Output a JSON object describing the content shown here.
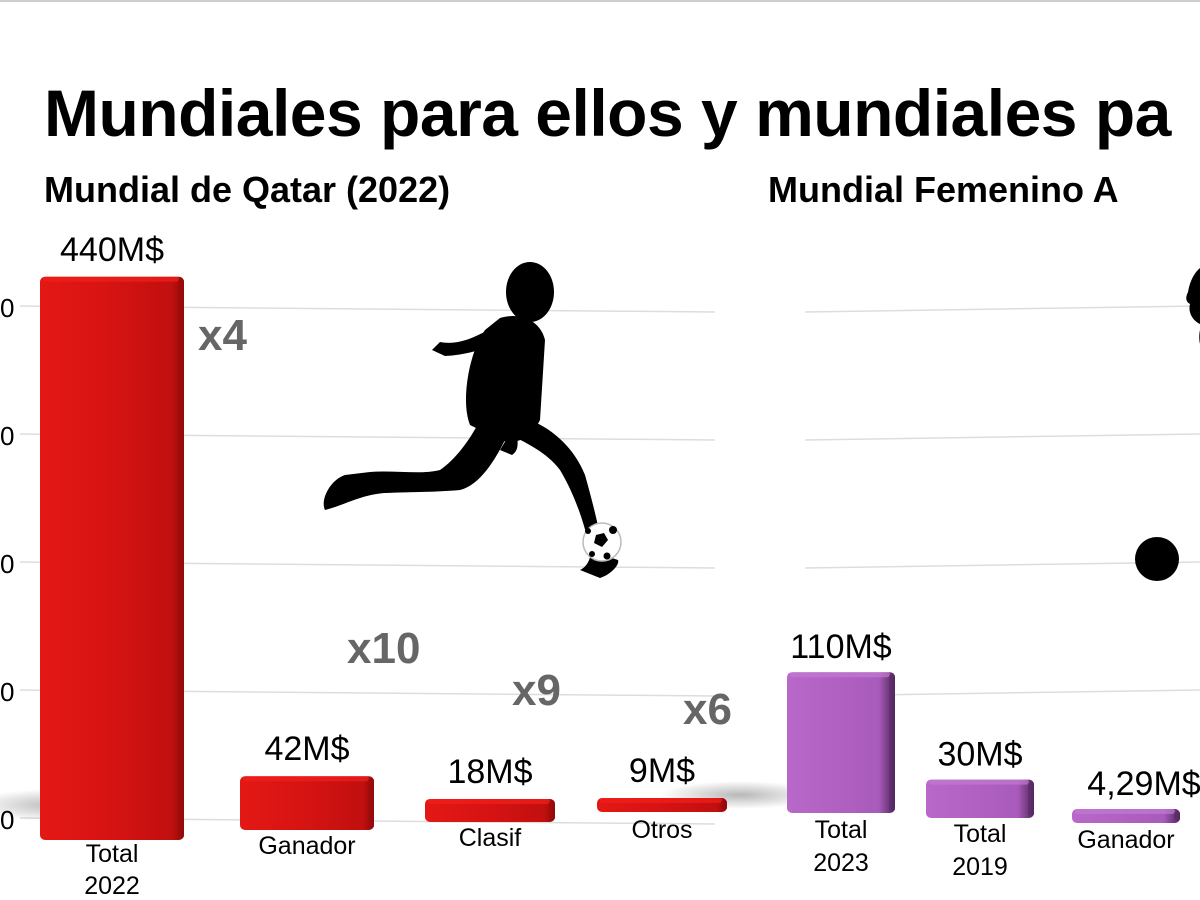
{
  "title": "Mundiales para ellos y mundiales pa",
  "colors": {
    "men": "#d91414",
    "men_light": "#f21f1a",
    "men_dark": "#9e0b0b",
    "women": "#b264c4",
    "women_light": "#c27ad2",
    "women_dark": "#5a2a66",
    "multiplier": "#666666",
    "grid": "#dddddd"
  },
  "icons": {
    "men_panel": "soccer-player-kicking-silhouette-icon",
    "women_panel": "soccer-player-silhouette-partial-icon"
  },
  "chart_data": [
    {
      "type": "bar",
      "title": "Mundial de Qatar (2022)",
      "xlabel": "",
      "ylabel": "",
      "ylim": [
        0,
        440
      ],
      "yticks": [
        0,
        100,
        200,
        300,
        400
      ],
      "ytick_labels": [
        "0",
        "0",
        "0",
        "0",
        "0"
      ],
      "grid": true,
      "categories": [
        "Total 2022",
        "Ganador",
        "Clasif",
        "Otros"
      ],
      "category_lines": [
        [
          "Total",
          "2022"
        ],
        [
          "Ganador"
        ],
        [
          "Clasif"
        ],
        [
          "Otros"
        ]
      ],
      "values": [
        440,
        42,
        18,
        9
      ],
      "value_labels": [
        "440M$",
        "42M$",
        "18M$",
        "9M$"
      ],
      "annotations": [
        "x4",
        "x10",
        "x9",
        "x6"
      ],
      "unit": "M$"
    },
    {
      "type": "bar",
      "title": "Mundial Femenino A",
      "xlabel": "",
      "ylabel": "",
      "ylim": [
        0,
        440
      ],
      "grid": true,
      "categories": [
        "Total 2023",
        "Total 2019",
        "Ganador"
      ],
      "category_lines": [
        [
          "Total",
          "2023"
        ],
        [
          "Total",
          "2019"
        ],
        [
          "Ganador"
        ]
      ],
      "values": [
        110,
        30,
        4.29
      ],
      "value_labels": [
        "110M$",
        "30M$",
        "4,29M$"
      ],
      "unit": "M$"
    }
  ]
}
